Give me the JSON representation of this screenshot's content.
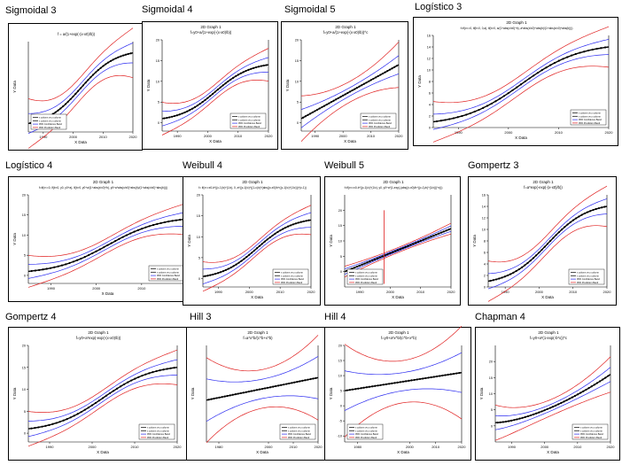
{
  "legend_labels": [
    "x column vs y column",
    "x column vs y column",
    "95% Confidence Band",
    "95% Prediction Band"
  ],
  "colors": {
    "data": "#000000",
    "fit": "#000000",
    "confidence": "#2a2af0",
    "prediction": "#e02020"
  },
  "panels": [
    {
      "title": "Sigmoidal 3",
      "graph_title": "",
      "equation": "f = a/(1+exp(-(x-x0)/b))",
      "ylabel": "Y Data",
      "xlabel": "X Data",
      "chart_data": {
        "type": "line",
        "x_ticks": [
          1990,
          2000,
          2010,
          2020
        ],
        "y_ticks": [],
        "xlim": [
          1985,
          2020
        ],
        "ylim": [
          0,
          16
        ],
        "fit": "sigmoid",
        "y_start": 1.5,
        "y_end": 14,
        "conf_width": 0.8,
        "pred_width": 2,
        "legend": "bottom-left"
      }
    },
    {
      "title": "Sigmoidal 4",
      "graph_title": "2D Graph 1",
      "equation": "f=y0+a/(1+exp(-(x-x0)/b))",
      "ylabel": "Y Data",
      "xlabel": "X Data",
      "chart_data": {
        "type": "line",
        "x_ticks": [
          1990,
          2000,
          2010,
          2020
        ],
        "y_ticks": [
          0,
          5,
          10,
          15,
          20
        ],
        "xlim": [
          1985,
          2020
        ],
        "ylim": [
          -2,
          20
        ],
        "fit": "sigmoid",
        "y_start": 1,
        "y_end": 14,
        "conf_width": 0.8,
        "pred_width": 1.8,
        "legend": "bottom-right"
      }
    },
    {
      "title": "Sigmoidal 5",
      "graph_title": "2D Graph 1",
      "equation": "f=y0+a/(1+exp(-(x-x0)/b))^c",
      "ylabel": "Y Data",
      "xlabel": "X Data",
      "chart_data": {
        "type": "line",
        "x_ticks": [
          1990,
          2000,
          2010,
          2020
        ],
        "y_ticks": [
          0,
          5,
          10,
          15,
          20
        ],
        "xlim": [
          1985,
          2020
        ],
        "ylim": [
          -2,
          20
        ],
        "fit": "linear",
        "y_start": 1,
        "y_end": 14,
        "conf_width": 1,
        "pred_width": 2.5,
        "legend": "bottom-right"
      }
    },
    {
      "title": "Logístico 3",
      "graph_title": "2D Graph 1",
      "equation": "f=if(x<=0, if(b<0, 0,a), if(b>0, a/(1+abs(x/x0)^b), a*abs(x/x0)^abs(b)/(1+abs(x/x0)^abs(b))))",
      "ylabel": "Y Data",
      "xlabel": "X Data",
      "chart_data": {
        "type": "line",
        "x_ticks": [
          1990,
          2000,
          2010,
          2020
        ],
        "y_ticks": [
          0,
          2,
          4,
          6,
          8,
          10,
          12,
          14,
          16
        ],
        "xlim": [
          1985,
          2020
        ],
        "ylim": [
          0,
          16
        ],
        "fit": "sigmoid",
        "y_start": 1,
        "y_end": 14,
        "conf_width": 0.6,
        "pred_width": 1.6,
        "legend": "bottom-right"
      }
    },
    {
      "title": "Logístico 4",
      "graph_title": "2D Graph 1",
      "equation": "f=if(x<=0, if(b<0, y0, y0+a), if(b>0, y0+a/(1+abs(x/x0)^b), y0+a*abs(x/x0)^abs(b)/(1+abs(x/x0)^abs(b))))",
      "ylabel": "Y Data",
      "xlabel": "X Data",
      "chart_data": {
        "type": "line",
        "x_ticks": [
          1990,
          2000,
          2010,
          2020
        ],
        "y_ticks": [
          0,
          5,
          10,
          15,
          20
        ],
        "xlim": [
          1985,
          2020
        ],
        "ylim": [
          -2,
          20
        ],
        "fit": "sigmoid",
        "y_start": 1,
        "y_end": 14,
        "conf_width": 0.8,
        "pred_width": 1.8,
        "legend": "bottom-right"
      }
    },
    {
      "title": "Weibull 4",
      "graph_title": "2D Graph 1",
      "equation": "f= if(x<=x0-b*((c-1)/c)^(1/c), 0, a*((c-1)/c)^((1-c)/c)*(abs((x-x0)/b+((c-1)/c)^(1/c)))^(c-1))",
      "ylabel": "Y Data",
      "xlabel": "X Data",
      "chart_data": {
        "type": "line",
        "x_ticks": [
          1990,
          2000,
          2010,
          2020
        ],
        "y_ticks": [
          0,
          5,
          10,
          15,
          20
        ],
        "xlim": [
          1985,
          2020
        ],
        "ylim": [
          -2,
          20
        ],
        "fit": "sigmoid",
        "y_start": 0.5,
        "y_end": 14,
        "conf_width": 0.8,
        "pred_width": 1.6,
        "legend": "bottom-right"
      }
    },
    {
      "title": "Weibull 5",
      "graph_title": "2D Graph 1",
      "equation": "f=if(x<=x0-b*((c-1)/c)^(1/c), y0, y0+a*(1-exp(-(abs((x-x0)/b+((c-1)/c)^(1/c)))^c)))",
      "ylabel": "Y Data",
      "xlabel": "X Data",
      "chart_data": {
        "type": "line",
        "x_ticks": [
          1990,
          2000,
          2010,
          2020
        ],
        "y_ticks": [
          0,
          5,
          10,
          15,
          20
        ],
        "xlim": [
          1985,
          2020
        ],
        "ylim": [
          -5,
          25
        ],
        "fit": "weibull5",
        "y_start": 0,
        "y_end": 14,
        "conf_width": 0.4,
        "pred_width": 0.8,
        "spike_x": 1998,
        "spike_height": 20,
        "legend": "bottom-left"
      }
    },
    {
      "title": "Gompertz 3",
      "graph_title": "2D Graph 1",
      "equation": "f=a*exp(-exp(-(x-x0)/b))",
      "ylabel": "Y Data",
      "xlabel": "X Data",
      "chart_data": {
        "type": "line",
        "x_ticks": [
          1990,
          2000,
          2010,
          2020
        ],
        "y_ticks": [
          0,
          2,
          4,
          6,
          8,
          10,
          12,
          14,
          16
        ],
        "xlim": [
          1985,
          2020
        ],
        "ylim": [
          0,
          16
        ],
        "fit": "sigmoid",
        "y_start": 1,
        "y_end": 14,
        "conf_width": 0.6,
        "pred_width": 1.6,
        "legend": "bottom-right"
      }
    },
    {
      "title": "Gompertz 4",
      "graph_title": "2D Graph 1",
      "equation": "f=y0+a*exp(-exp(-(x-x0)/b))",
      "ylabel": "Y Data",
      "xlabel": "X Data",
      "chart_data": {
        "type": "line",
        "x_ticks": [
          1990,
          2000,
          2010,
          2020
        ],
        "y_ticks": [
          0,
          5,
          10,
          15,
          20
        ],
        "xlim": [
          1985,
          2020
        ],
        "ylim": [
          -2,
          20
        ],
        "fit": "sigmoid",
        "y_start": 1,
        "y_end": 15,
        "conf_width": 0.8,
        "pred_width": 1.8,
        "legend": "bottom-right"
      }
    },
    {
      "title": "Hill 3",
      "graph_title": "2D Graph 1",
      "equation": "f=a*x^b/(c^b+x^b)",
      "ylabel": "Y Data",
      "xlabel": "X Data",
      "chart_data": {
        "type": "line",
        "x_ticks": [
          1980,
          2000,
          2010,
          2020
        ],
        "y_ticks": [],
        "xlim": [
          1975,
          2020
        ],
        "ylim": [
          -10,
          20
        ],
        "fit": "linear",
        "y_start": 3,
        "y_end": 10,
        "conf_width": 3,
        "pred_width": 6,
        "legend": "bottom-right"
      }
    },
    {
      "title": "Hill 4",
      "graph_title": "2D Graph 1",
      "equation": "f=y0+a*x^b/(c^b+x^b)",
      "ylabel": "Y Data",
      "xlabel": "X Data",
      "chart_data": {
        "type": "line",
        "x_ticks": [
          1980,
          2000,
          2010,
          2020
        ],
        "y_ticks": [
          -10,
          -5,
          0,
          5,
          10,
          15,
          20
        ],
        "xlim": [
          1975,
          2020
        ],
        "ylim": [
          -12,
          20
        ],
        "fit": "linear",
        "y_start": 5,
        "y_end": 11,
        "conf_width": 3,
        "pred_width": 7,
        "legend": "bottom-left"
      }
    },
    {
      "title": "Chapman 4",
      "graph_title": "2D Graph 1",
      "equation": "f=y0+a*(1-exp(-b*x))^c",
      "ylabel": "Y Data",
      "xlabel": "X Data",
      "chart_data": {
        "type": "line",
        "x_ticks": [
          1990,
          2000,
          2010,
          2020
        ],
        "y_ticks": [
          0,
          5,
          10,
          15,
          20
        ],
        "xlim": [
          1985,
          2020
        ],
        "ylim": [
          -5,
          25
        ],
        "fit": "convex",
        "y_start": 1,
        "y_end": 16,
        "conf_width": 1,
        "pred_width": 2.5,
        "legend": "bottom-right"
      }
    }
  ]
}
